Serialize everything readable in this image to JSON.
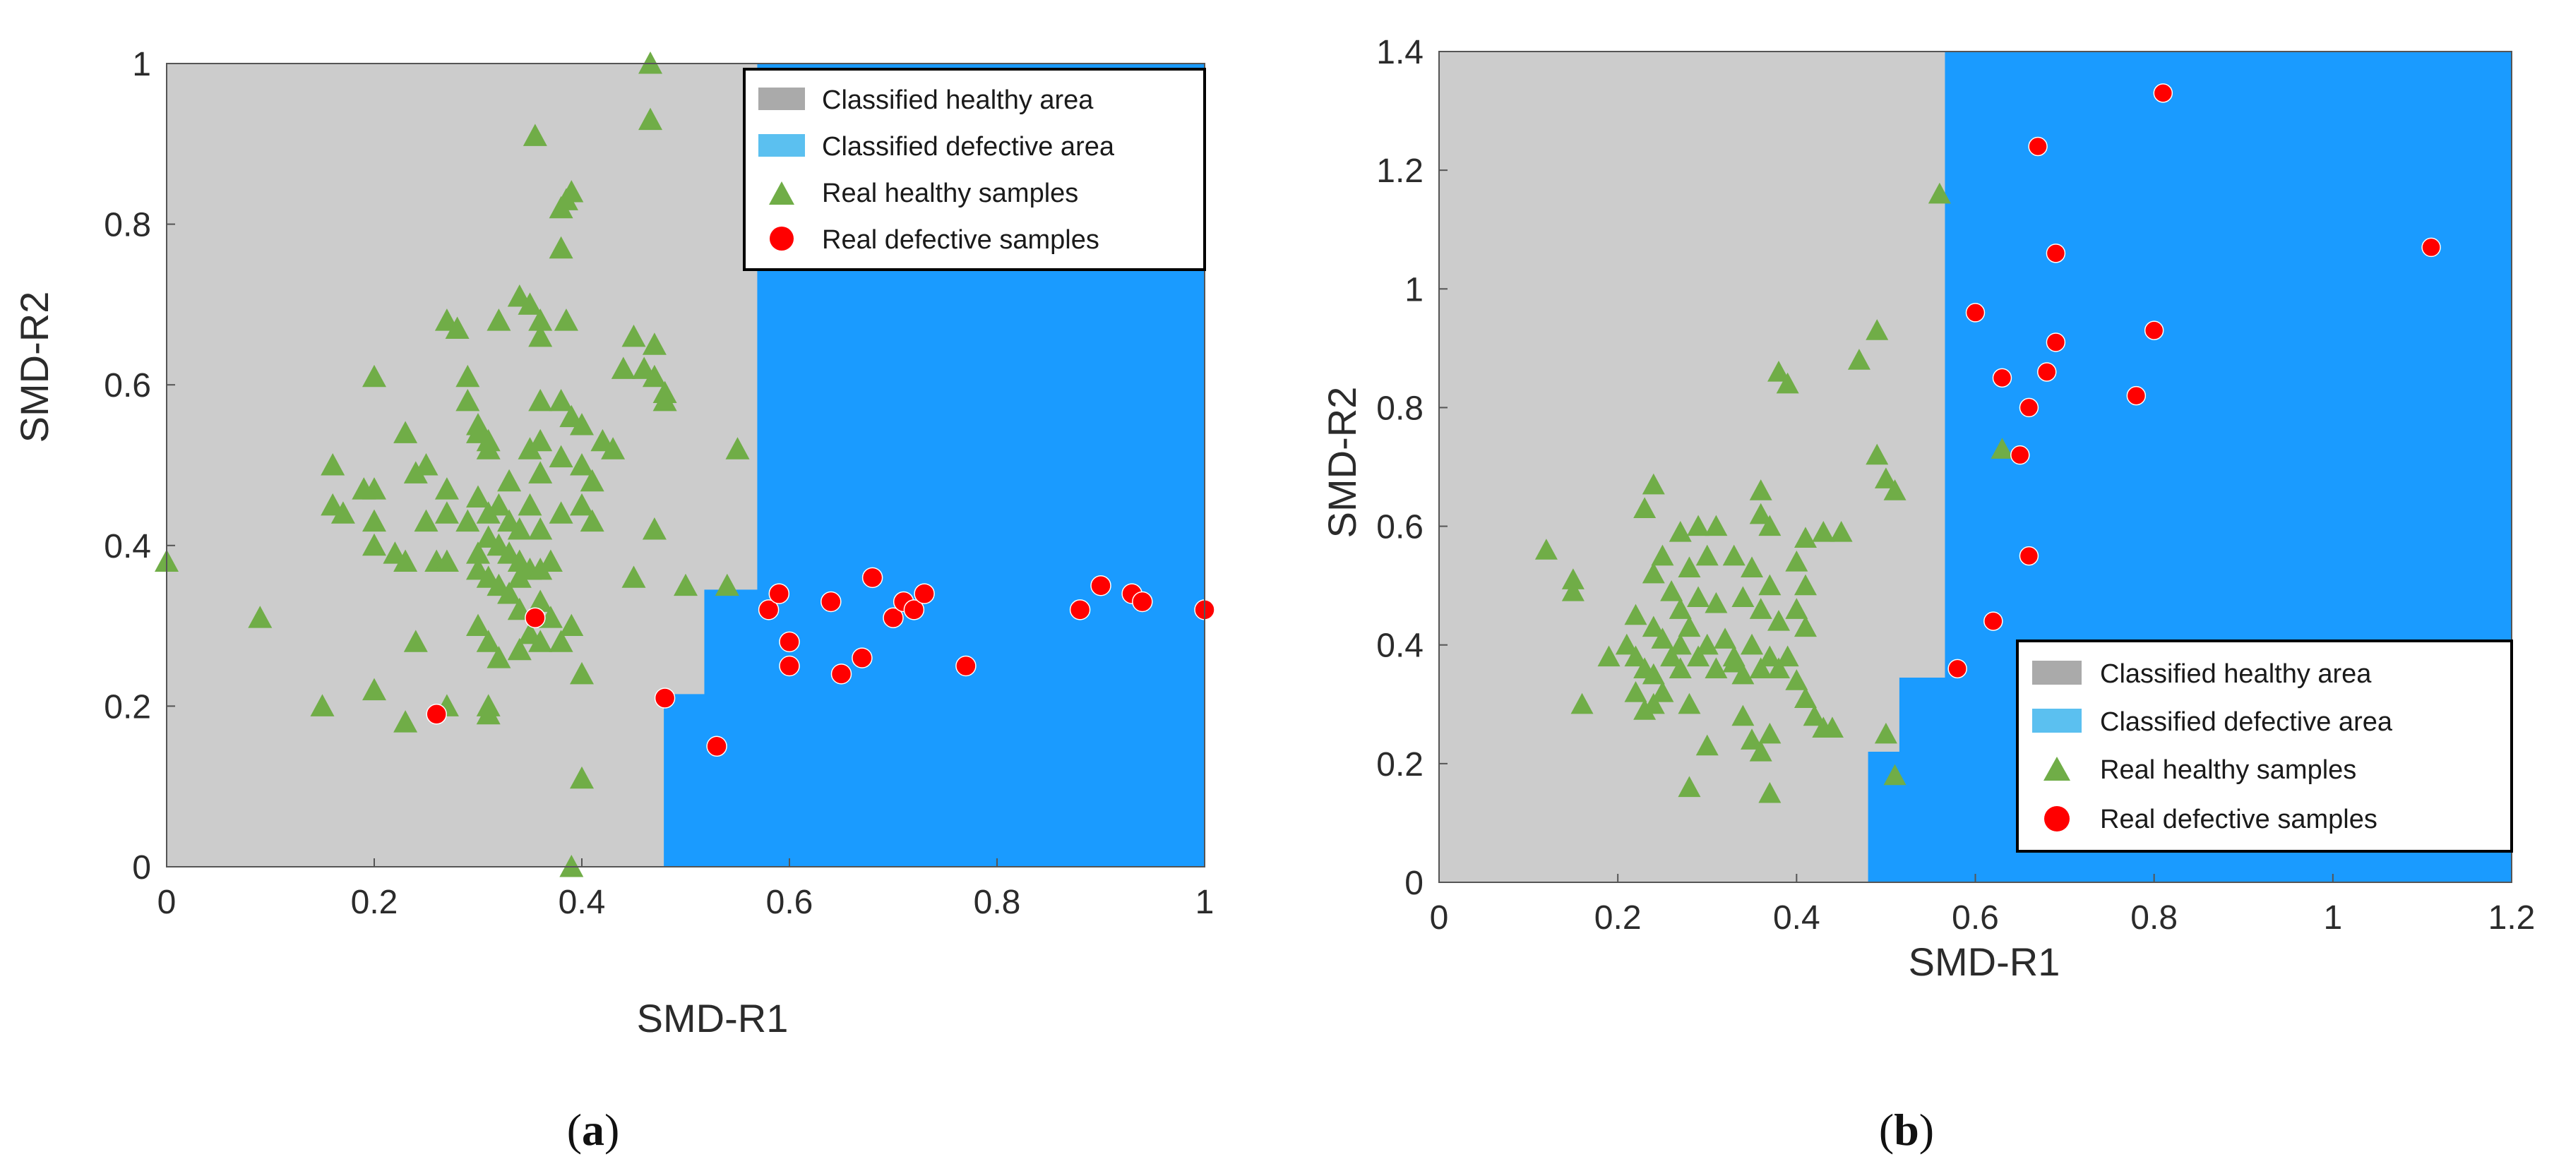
{
  "colors": {
    "healthy_area": "#cccccc",
    "defective_area": "#1a9bff",
    "healthy_marker": "#70ad47",
    "defective_marker": "#ff0000"
  },
  "chart_data": [
    {
      "type": "scatter",
      "panel_label": "a",
      "xlabel": "SMD-R1",
      "ylabel": "SMD-R2",
      "xlim": [
        0,
        1
      ],
      "ylim": [
        0,
        1
      ],
      "xticks": [
        "0",
        "0.2",
        "0.4",
        "0.6",
        "0.8",
        "1"
      ],
      "yticks": [
        "0",
        "0.2",
        "0.4",
        "0.6",
        "0.8",
        "1"
      ],
      "grid": false,
      "legend_position": "top-right",
      "legend": [
        "Classified healthy area",
        "Classified defective area",
        "Real healthy samples",
        "Real defective samples"
      ],
      "defective_region_boundary": [
        [
          1,
          1
        ],
        [
          0.569,
          1
        ],
        [
          0.569,
          0.345
        ],
        [
          0.518,
          0.345
        ],
        [
          0.518,
          0.215
        ],
        [
          0.479,
          0.215
        ],
        [
          0.479,
          0
        ],
        [
          1,
          0
        ]
      ],
      "series": [
        {
          "name": "Real healthy samples",
          "marker": "triangle",
          "points": [
            [
              0.466,
              1.0
            ],
            [
              0.466,
              0.93
            ],
            [
              0.355,
              0.91
            ],
            [
              0.38,
              0.82
            ],
            [
              0.39,
              0.84
            ],
            [
              0.385,
              0.83
            ],
            [
              0.38,
              0.77
            ],
            [
              0.34,
              0.71
            ],
            [
              0.35,
              0.7
            ],
            [
              0.36,
              0.68
            ],
            [
              0.27,
              0.68
            ],
            [
              0.28,
              0.67
            ],
            [
              0.32,
              0.68
            ],
            [
              0.36,
              0.66
            ],
            [
              0.385,
              0.68
            ],
            [
              0.45,
              0.66
            ],
            [
              0.47,
              0.65
            ],
            [
              0.46,
              0.62
            ],
            [
              0.47,
              0.61
            ],
            [
              0.48,
              0.59
            ],
            [
              0.48,
              0.58
            ],
            [
              0.2,
              0.61
            ],
            [
              0.29,
              0.61
            ],
            [
              0.29,
              0.58
            ],
            [
              0.3,
              0.55
            ],
            [
              0.3,
              0.54
            ],
            [
              0.31,
              0.53
            ],
            [
              0.36,
              0.58
            ],
            [
              0.38,
              0.58
            ],
            [
              0.39,
              0.56
            ],
            [
              0.4,
              0.55
            ],
            [
              0.44,
              0.62
            ],
            [
              0.23,
              0.54
            ],
            [
              0.25,
              0.5
            ],
            [
              0.24,
              0.49
            ],
            [
              0.2,
              0.47
            ],
            [
              0.19,
              0.47
            ],
            [
              0.16,
              0.5
            ],
            [
              0.16,
              0.45
            ],
            [
              0.17,
              0.44
            ],
            [
              0.2,
              0.43
            ],
            [
              0.25,
              0.43
            ],
            [
              0.31,
              0.52
            ],
            [
              0.35,
              0.52
            ],
            [
              0.36,
              0.53
            ],
            [
              0.38,
              0.51
            ],
            [
              0.4,
              0.5
            ],
            [
              0.42,
              0.53
            ],
            [
              0.43,
              0.52
            ],
            [
              0.41,
              0.48
            ],
            [
              0.36,
              0.49
            ],
            [
              0.33,
              0.48
            ],
            [
              0.27,
              0.47
            ],
            [
              0.3,
              0.46
            ],
            [
              0.32,
              0.45
            ],
            [
              0.35,
              0.45
            ],
            [
              0.38,
              0.44
            ],
            [
              0.27,
              0.44
            ],
            [
              0.29,
              0.43
            ],
            [
              0.31,
              0.44
            ],
            [
              0.33,
              0.43
            ],
            [
              0.34,
              0.42
            ],
            [
              0.36,
              0.42
            ],
            [
              0.4,
              0.45
            ],
            [
              0.41,
              0.43
            ],
            [
              0.2,
              0.4
            ],
            [
              0.22,
              0.39
            ],
            [
              0.23,
              0.38
            ],
            [
              0.26,
              0.38
            ],
            [
              0.27,
              0.38
            ],
            [
              0.3,
              0.39
            ],
            [
              0.31,
              0.41
            ],
            [
              0.32,
              0.4
            ],
            [
              0.33,
              0.39
            ],
            [
              0.34,
              0.38
            ],
            [
              0.35,
              0.37
            ],
            [
              0.34,
              0.36
            ],
            [
              0.36,
              0.37
            ],
            [
              0.37,
              0.38
            ],
            [
              0.3,
              0.37
            ],
            [
              0.31,
              0.36
            ],
            [
              0.32,
              0.35
            ],
            [
              0.33,
              0.34
            ],
            [
              0.34,
              0.32
            ],
            [
              0.36,
              0.33
            ],
            [
              0.37,
              0.31
            ],
            [
              0.35,
              0.29
            ],
            [
              0.36,
              0.28
            ],
            [
              0.34,
              0.27
            ],
            [
              0.39,
              0.3
            ],
            [
              0.38,
              0.28
            ],
            [
              0.47,
              0.42
            ],
            [
              0.55,
              0.52
            ],
            [
              0.45,
              0.36
            ],
            [
              0.5,
              0.35
            ],
            [
              0.54,
              0.35
            ],
            [
              0.0,
              0.38
            ],
            [
              0.09,
              0.31
            ],
            [
              0.24,
              0.28
            ],
            [
              0.3,
              0.3
            ],
            [
              0.31,
              0.28
            ],
            [
              0.32,
              0.26
            ],
            [
              0.4,
              0.24
            ],
            [
              0.15,
              0.2
            ],
            [
              0.2,
              0.22
            ],
            [
              0.23,
              0.18
            ],
            [
              0.27,
              0.2
            ],
            [
              0.31,
              0.19
            ],
            [
              0.31,
              0.2
            ],
            [
              0.4,
              0.11
            ],
            [
              0.39,
              0.0
            ]
          ]
        },
        {
          "name": "Real defective samples",
          "marker": "circle",
          "points": [
            [
              0.355,
              0.31
            ],
            [
              0.26,
              0.19
            ],
            [
              0.48,
              0.21
            ],
            [
              0.53,
              0.15
            ],
            [
              0.58,
              0.32
            ],
            [
              0.59,
              0.34
            ],
            [
              0.6,
              0.28
            ],
            [
              0.6,
              0.25
            ],
            [
              0.64,
              0.33
            ],
            [
              0.65,
              0.24
            ],
            [
              0.67,
              0.26
            ],
            [
              0.68,
              0.36
            ],
            [
              0.7,
              0.31
            ],
            [
              0.71,
              0.33
            ],
            [
              0.72,
              0.32
            ],
            [
              0.73,
              0.34
            ],
            [
              0.77,
              0.25
            ],
            [
              0.88,
              0.32
            ],
            [
              0.9,
              0.35
            ],
            [
              0.93,
              0.34
            ],
            [
              0.94,
              0.33
            ],
            [
              1.0,
              0.32
            ]
          ]
        }
      ]
    },
    {
      "type": "scatter",
      "panel_label": "b",
      "xlabel": "SMD-R1",
      "ylabel": "SMD-R2",
      "xlim": [
        0,
        1.2
      ],
      "ylim": [
        0,
        1.4
      ],
      "xticks": [
        "0",
        "0.2",
        "0.4",
        "0.6",
        "0.8",
        "1",
        "1.2"
      ],
      "yticks": [
        "0",
        "0.2",
        "0.4",
        "0.6",
        "0.8",
        "1",
        "1.2",
        "1.4"
      ],
      "grid": false,
      "legend_position": "bottom-right",
      "legend": [
        "Classified healthy area",
        "Classified defective area",
        "Real healthy samples",
        "Real defective samples"
      ],
      "defective_region_boundary": [
        [
          1.2,
          1.4
        ],
        [
          0.566,
          1.4
        ],
        [
          0.566,
          0.345
        ],
        [
          0.515,
          0.345
        ],
        [
          0.515,
          0.22
        ],
        [
          0.48,
          0.22
        ],
        [
          0.48,
          0
        ],
        [
          1.2,
          0
        ]
      ],
      "series": [
        {
          "name": "Real healthy samples",
          "marker": "triangle",
          "points": [
            [
              0.56,
              1.16
            ],
            [
              0.47,
              0.88
            ],
            [
              0.49,
              0.93
            ],
            [
              0.38,
              0.86
            ],
            [
              0.39,
              0.84
            ],
            [
              0.49,
              0.72
            ],
            [
              0.5,
              0.68
            ],
            [
              0.51,
              0.66
            ],
            [
              0.63,
              0.73
            ],
            [
              0.12,
              0.56
            ],
            [
              0.15,
              0.51
            ],
            [
              0.15,
              0.49
            ],
            [
              0.24,
              0.67
            ],
            [
              0.23,
              0.63
            ],
            [
              0.27,
              0.59
            ],
            [
              0.29,
              0.6
            ],
            [
              0.31,
              0.6
            ],
            [
              0.36,
              0.66
            ],
            [
              0.36,
              0.62
            ],
            [
              0.37,
              0.6
            ],
            [
              0.41,
              0.58
            ],
            [
              0.43,
              0.59
            ],
            [
              0.45,
              0.59
            ],
            [
              0.25,
              0.55
            ],
            [
              0.28,
              0.53
            ],
            [
              0.3,
              0.55
            ],
            [
              0.33,
              0.55
            ],
            [
              0.35,
              0.53
            ],
            [
              0.37,
              0.5
            ],
            [
              0.4,
              0.54
            ],
            [
              0.41,
              0.5
            ],
            [
              0.24,
              0.52
            ],
            [
              0.26,
              0.49
            ],
            [
              0.27,
              0.46
            ],
            [
              0.29,
              0.48
            ],
            [
              0.31,
              0.47
            ],
            [
              0.34,
              0.48
            ],
            [
              0.36,
              0.46
            ],
            [
              0.38,
              0.44
            ],
            [
              0.4,
              0.46
            ],
            [
              0.41,
              0.43
            ],
            [
              0.22,
              0.45
            ],
            [
              0.24,
              0.43
            ],
            [
              0.25,
              0.41
            ],
            [
              0.27,
              0.4
            ],
            [
              0.28,
              0.43
            ],
            [
              0.3,
              0.4
            ],
            [
              0.32,
              0.41
            ],
            [
              0.33,
              0.38
            ],
            [
              0.35,
              0.4
            ],
            [
              0.37,
              0.38
            ],
            [
              0.38,
              0.36
            ],
            [
              0.39,
              0.38
            ],
            [
              0.19,
              0.38
            ],
            [
              0.21,
              0.4
            ],
            [
              0.22,
              0.38
            ],
            [
              0.23,
              0.36
            ],
            [
              0.24,
              0.35
            ],
            [
              0.26,
              0.38
            ],
            [
              0.27,
              0.36
            ],
            [
              0.29,
              0.38
            ],
            [
              0.31,
              0.36
            ],
            [
              0.33,
              0.37
            ],
            [
              0.34,
              0.35
            ],
            [
              0.36,
              0.36
            ],
            [
              0.4,
              0.34
            ],
            [
              0.41,
              0.31
            ],
            [
              0.42,
              0.28
            ],
            [
              0.43,
              0.26
            ],
            [
              0.44,
              0.26
            ],
            [
              0.22,
              0.32
            ],
            [
              0.23,
              0.29
            ],
            [
              0.24,
              0.3
            ],
            [
              0.25,
              0.32
            ],
            [
              0.28,
              0.3
            ],
            [
              0.3,
              0.23
            ],
            [
              0.34,
              0.28
            ],
            [
              0.35,
              0.24
            ],
            [
              0.36,
              0.22
            ],
            [
              0.37,
              0.25
            ],
            [
              0.16,
              0.3
            ],
            [
              0.28,
              0.16
            ],
            [
              0.37,
              0.15
            ],
            [
              0.5,
              0.25
            ],
            [
              0.51,
              0.18
            ]
          ]
        },
        {
          "name": "Real defective samples",
          "marker": "circle",
          "points": [
            [
              0.81,
              1.33
            ],
            [
              0.67,
              1.24
            ],
            [
              0.69,
              1.06
            ],
            [
              1.11,
              1.07
            ],
            [
              0.6,
              0.96
            ],
            [
              0.69,
              0.91
            ],
            [
              0.8,
              0.93
            ],
            [
              0.63,
              0.85
            ],
            [
              0.68,
              0.86
            ],
            [
              0.66,
              0.8
            ],
            [
              0.78,
              0.82
            ],
            [
              0.65,
              0.72
            ],
            [
              0.66,
              0.55
            ],
            [
              0.62,
              0.44
            ],
            [
              0.58,
              0.36
            ]
          ]
        }
      ]
    }
  ]
}
